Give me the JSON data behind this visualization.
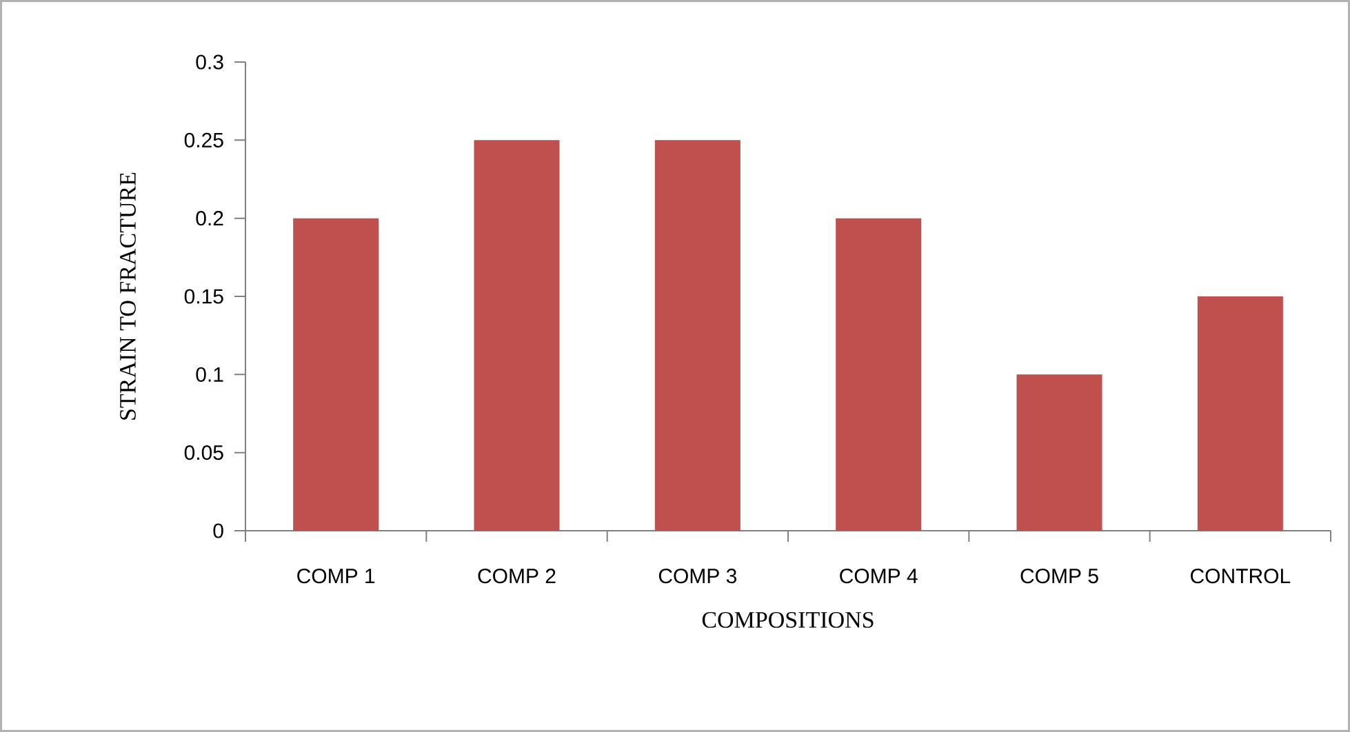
{
  "chart_data": {
    "type": "bar",
    "xlabel": "COMPOSITIONS",
    "ylabel": "STRAIN  TO FRACTURE",
    "categories": [
      "COMP 1",
      "COMP 2",
      "COMP 3",
      "COMP 4",
      "COMP 5",
      "CONTROL"
    ],
    "values": [
      0.2,
      0.25,
      0.25,
      0.2,
      0.1,
      0.15
    ],
    "color": "#c0504d",
    "ylim": [
      0,
      0.3
    ],
    "yticks": [
      0,
      0.05,
      0.1,
      0.15,
      0.2,
      0.25,
      0.3
    ]
  }
}
